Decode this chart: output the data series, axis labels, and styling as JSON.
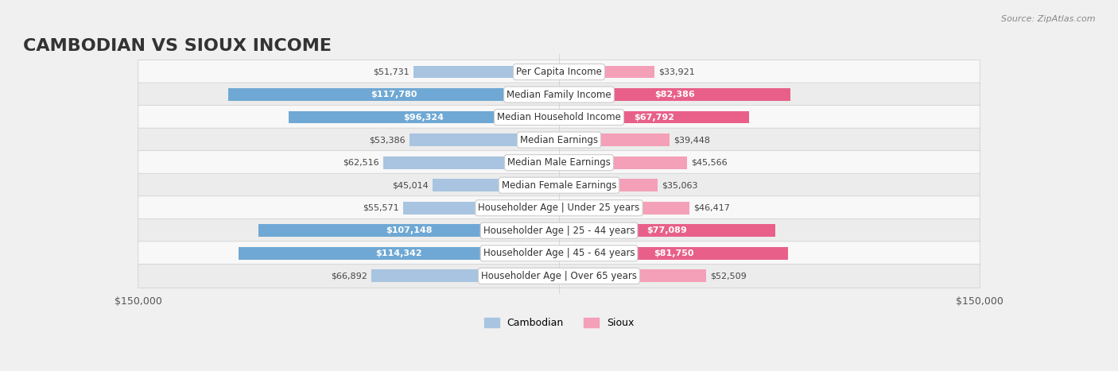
{
  "title": "CAMBODIAN VS SIOUX INCOME",
  "source": "Source: ZipAtlas.com",
  "categories": [
    "Per Capita Income",
    "Median Family Income",
    "Median Household Income",
    "Median Earnings",
    "Median Male Earnings",
    "Median Female Earnings",
    "Householder Age | Under 25 years",
    "Householder Age | 25 - 44 years",
    "Householder Age | 45 - 64 years",
    "Householder Age | Over 65 years"
  ],
  "cambodian_values": [
    51731,
    117780,
    96324,
    53386,
    62516,
    45014,
    55571,
    107148,
    114342,
    66892
  ],
  "sioux_values": [
    33921,
    82386,
    67792,
    39448,
    45566,
    35063,
    46417,
    77089,
    81750,
    52509
  ],
  "max_value": 150000,
  "cambodian_color_light": "#a8c4e0",
  "cambodian_color_dark": "#6fa8d4",
  "sioux_color_light": "#f4a0b8",
  "sioux_color_dark": "#e8608a",
  "cambodian_text_threshold": 80000,
  "sioux_text_threshold": 60000,
  "bar_height": 0.55,
  "background_color": "#f0f0f0",
  "row_bg_light": "#f8f8f8",
  "row_bg_dark": "#ececec",
  "label_bg": "#ffffff",
  "axis_label": "$150,000",
  "title_fontsize": 16,
  "label_fontsize": 8.5,
  "value_fontsize": 8,
  "legend_fontsize": 9
}
